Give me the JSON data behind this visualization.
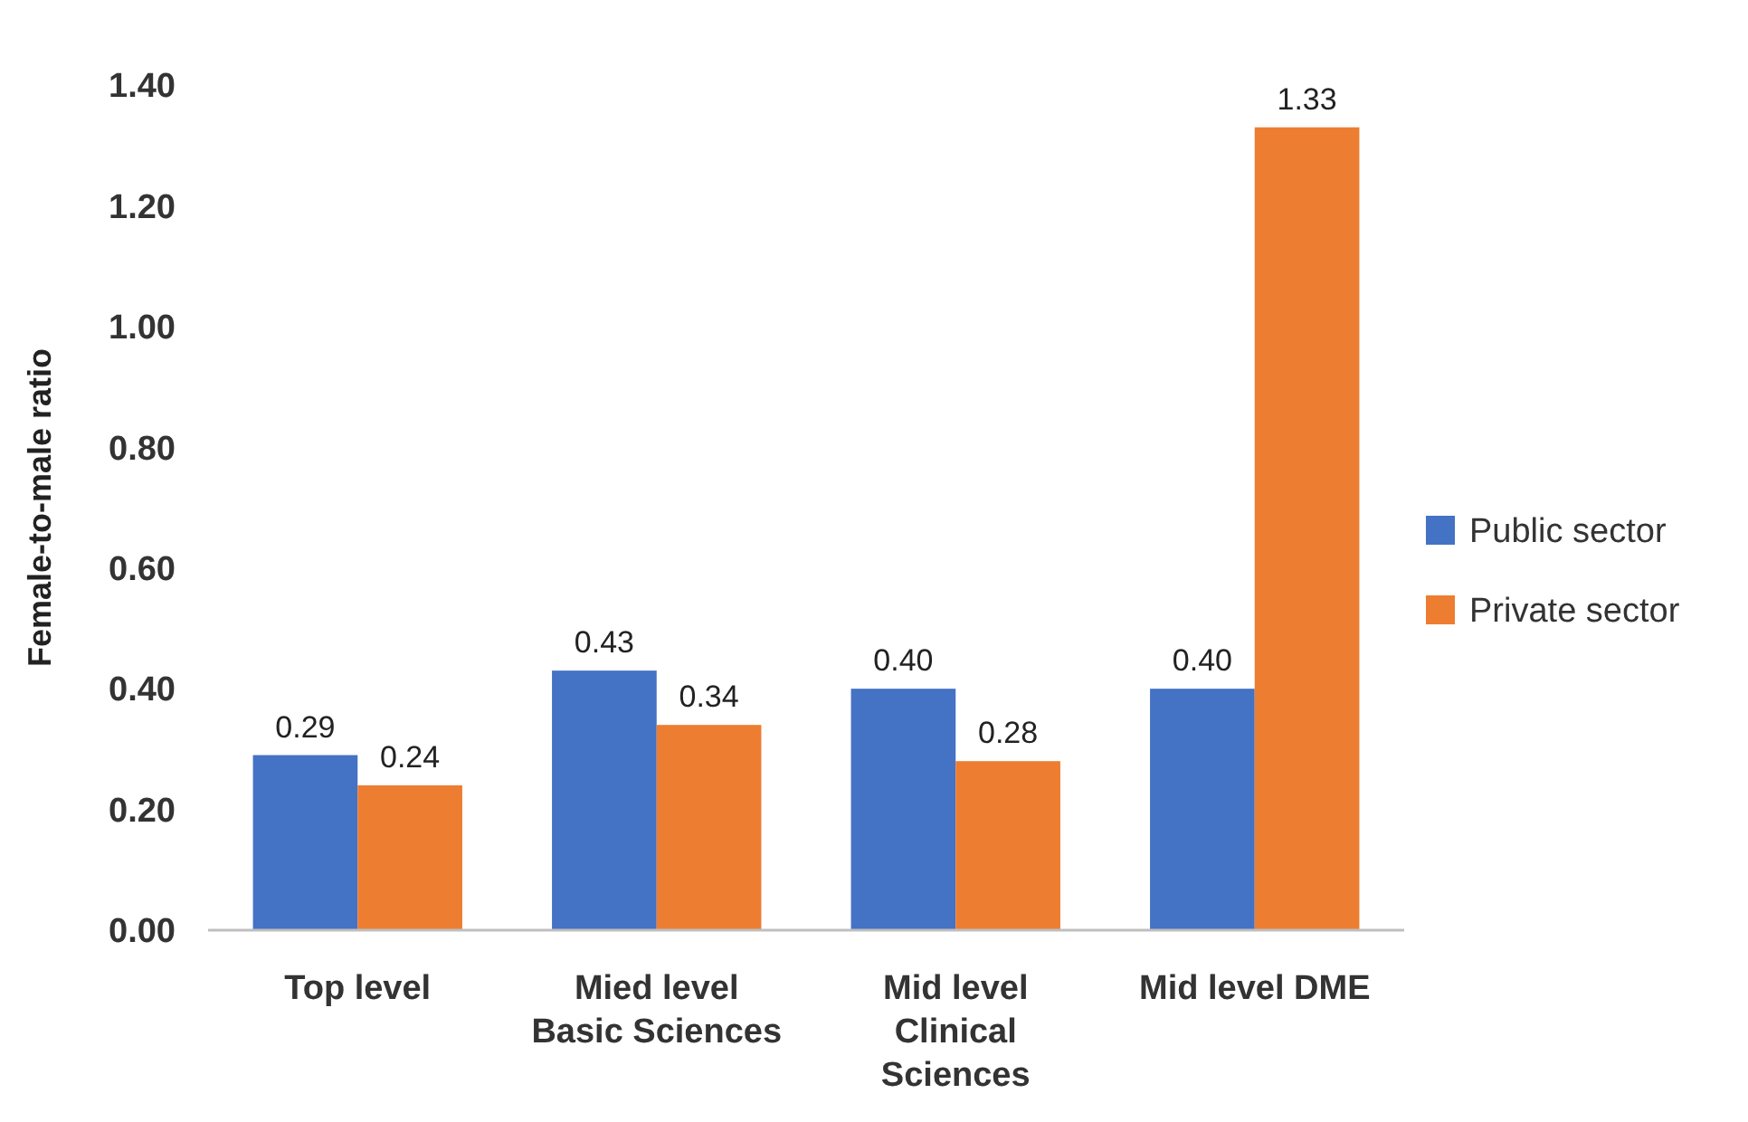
{
  "chart_data": {
    "type": "bar",
    "ylabel": "Female-to-male ratio",
    "categories": [
      "Top level",
      "Mied level Basic Sciences",
      "Mid level Clinical Sciences",
      "Mid level DME"
    ],
    "series": [
      {
        "name": "Public sector",
        "color": "#4472c4",
        "values": [
          0.29,
          0.43,
          0.4,
          0.4
        ],
        "value_labels": [
          "0.29",
          "0.43",
          "0.40",
          "0.40"
        ]
      },
      {
        "name": "Private sector",
        "color": "#ed7d31",
        "values": [
          0.24,
          0.34,
          0.28,
          1.33
        ],
        "value_labels": [
          "0.24",
          "0.34",
          "0.28",
          "1.33"
        ]
      }
    ],
    "ylim": [
      0,
      1.4
    ],
    "yticks": [
      {
        "value": 0,
        "label": "0.00"
      },
      {
        "value": 0.2,
        "label": "0.20"
      },
      {
        "value": 0.4,
        "label": "0.40"
      },
      {
        "value": 0.6,
        "label": "0.60"
      },
      {
        "value": 0.8,
        "label": "0.80"
      },
      {
        "value": 1.0,
        "label": "1.00"
      },
      {
        "value": 1.2,
        "label": "1.20"
      },
      {
        "value": 1.4,
        "label": "1.40"
      }
    ],
    "grid": false,
    "legend": "right"
  }
}
